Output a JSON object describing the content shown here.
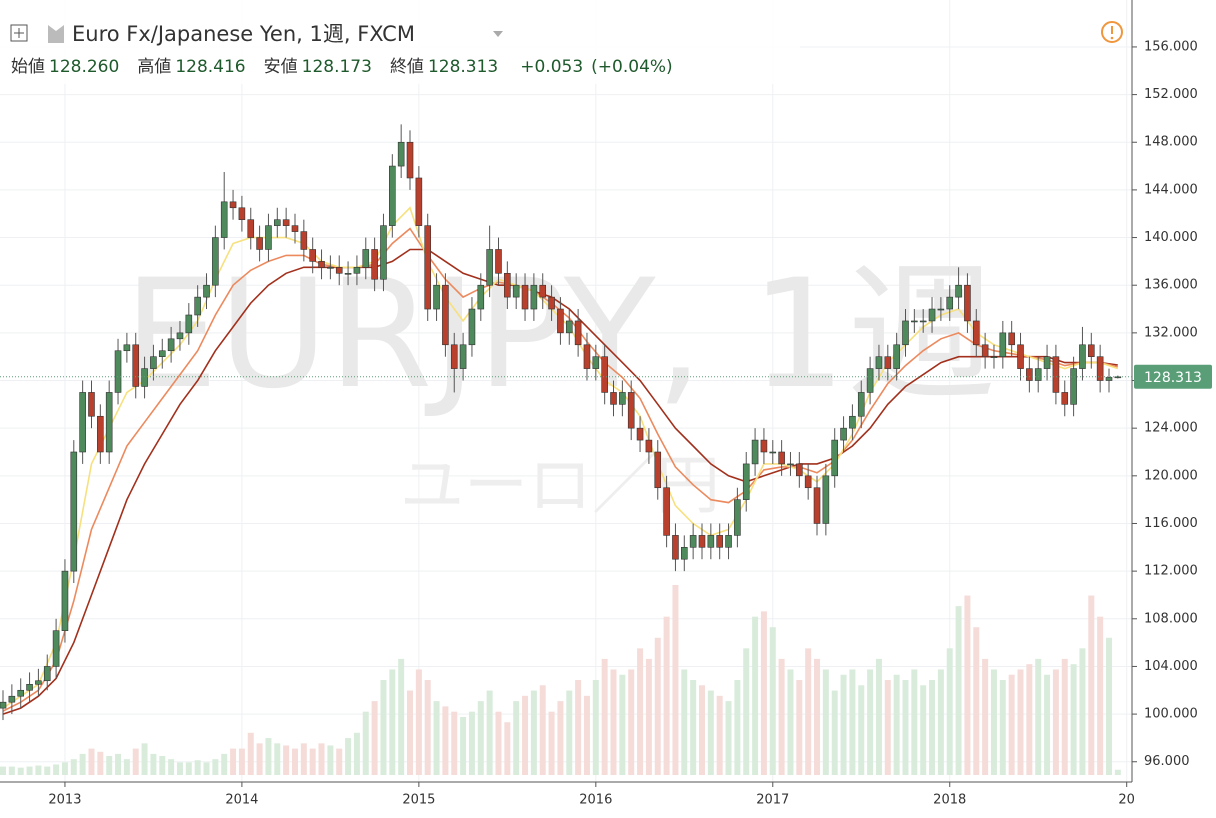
{
  "chart_data": {
    "type": "candlestick",
    "title": "Euro Fx/Japanese Yen, 1週, FXCM",
    "watermark": "EURJPY, 1週",
    "watermark_sub": "ユーロ／円",
    "x": [
      2012.65,
      2012.7,
      2012.75,
      2012.8,
      2012.85,
      2012.9,
      2012.95,
      2013,
      2013.05,
      2013.1,
      2013.15,
      2013.2,
      2013.25,
      2013.3,
      2013.35,
      2013.4,
      2013.45,
      2013.5,
      2013.55,
      2013.6,
      2013.65,
      2013.7,
      2013.75,
      2013.8,
      2013.85,
      2013.9,
      2013.95,
      2014,
      2014.05,
      2014.1,
      2014.15,
      2014.2,
      2014.25,
      2014.3,
      2014.35,
      2014.4,
      2014.45,
      2014.5,
      2014.55,
      2014.6,
      2014.65,
      2014.7,
      2014.75,
      2014.8,
      2014.85,
      2014.9,
      2014.95,
      2015,
      2015.05,
      2015.1,
      2015.15,
      2015.2,
      2015.25,
      2015.3,
      2015.35,
      2015.4,
      2015.45,
      2015.5,
      2015.55,
      2015.6,
      2015.65,
      2015.7,
      2015.75,
      2015.8,
      2015.85,
      2015.9,
      2015.95,
      2016,
      2016.05,
      2016.1,
      2016.15,
      2016.2,
      2016.25,
      2016.3,
      2016.35,
      2016.4,
      2016.45,
      2016.5,
      2016.55,
      2016.6,
      2016.65,
      2016.7,
      2016.75,
      2016.8,
      2016.85,
      2016.9,
      2016.95,
      2017,
      2017.05,
      2017.1,
      2017.15,
      2017.2,
      2017.25,
      2017.3,
      2017.35,
      2017.4,
      2017.45,
      2017.5,
      2017.55,
      2017.6,
      2017.65,
      2017.7,
      2017.75,
      2017.8,
      2017.85,
      2017.9,
      2017.95,
      2018,
      2018.05,
      2018.1,
      2018.15,
      2018.2,
      2018.25,
      2018.3,
      2018.35,
      2018.4,
      2018.45,
      2018.5,
      2018.55,
      2018.6,
      2018.65,
      2018.7,
      2018.75,
      2018.8,
      2018.85,
      2018.9,
      2018.95
    ],
    "open": [
      100.5,
      101,
      101.5,
      102,
      102.5,
      102.8,
      104,
      107,
      112,
      122,
      127,
      125,
      122,
      127,
      130.5,
      131,
      127.5,
      129,
      130,
      130.5,
      131.5,
      132,
      133.5,
      135,
      136,
      140,
      143,
      142.5,
      141.5,
      140,
      139,
      141,
      141.5,
      141,
      140.5,
      139,
      138,
      137.5,
      137.5,
      137,
      137,
      137.5,
      139,
      136.5,
      141,
      146,
      148,
      145,
      141,
      134,
      136,
      131,
      129,
      131,
      134,
      136,
      139,
      137,
      135,
      136,
      134,
      136,
      135,
      134,
      132,
      133,
      131,
      129,
      130,
      127,
      126,
      127,
      124,
      123,
      122,
      119,
      115,
      113,
      114,
      115,
      114,
      115,
      114,
      115,
      118,
      121,
      123,
      122,
      122,
      121,
      121,
      120,
      119,
      116,
      120,
      123,
      124,
      125,
      127,
      129,
      130,
      129,
      131,
      133,
      133,
      133,
      134,
      134,
      135,
      136,
      133,
      131,
      130,
      130,
      132,
      131,
      129,
      128,
      129,
      130,
      127,
      126,
      129,
      131,
      130,
      128,
      128.26
    ],
    "high": [
      102,
      102.5,
      103,
      103.5,
      103.8,
      105,
      108,
      113,
      123,
      128,
      128,
      126,
      128,
      131.5,
      132,
      132,
      130,
      131,
      131.5,
      132.5,
      133,
      134.5,
      136,
      137,
      141,
      145.5,
      144,
      143.5,
      142.5,
      141,
      142,
      142.5,
      142.5,
      142,
      141.5,
      140,
      139,
      138.5,
      138.5,
      138,
      138.5,
      140,
      140,
      142,
      147,
      149.5,
      149,
      146,
      142,
      137,
      137,
      132,
      132,
      135,
      137,
      141,
      140,
      138,
      137,
      137,
      137,
      137,
      136,
      135,
      134,
      134,
      132,
      131,
      131,
      128,
      128,
      128,
      125,
      124,
      123,
      120,
      116,
      115,
      116,
      116,
      116,
      116,
      116,
      119,
      122,
      124,
      124,
      123,
      123,
      122,
      122,
      121,
      120,
      121,
      124,
      125,
      126,
      128,
      130,
      131,
      131,
      132,
      134,
      134,
      134,
      135,
      135,
      136,
      137.5,
      137,
      134,
      132,
      131,
      133,
      133,
      132,
      130,
      130,
      131,
      131,
      128,
      130,
      132.5,
      132,
      131,
      129,
      128.416
    ],
    "low": [
      99.5,
      100,
      100.5,
      101,
      101.5,
      102,
      103,
      106,
      111,
      121,
      124,
      121,
      121,
      126,
      129.5,
      126.5,
      126.5,
      128,
      129,
      129.5,
      130.5,
      131,
      132.5,
      134,
      135,
      139,
      141.5,
      140.5,
      139,
      138,
      138,
      140,
      140,
      139.5,
      138,
      137,
      136.5,
      136.5,
      136,
      136,
      136,
      136.5,
      135.5,
      135.5,
      140,
      145,
      144,
      140,
      133,
      133,
      130,
      127,
      128,
      130,
      133,
      135,
      136,
      134,
      134,
      133,
      133,
      134,
      133,
      131,
      131,
      130,
      128,
      128,
      126,
      125,
      125,
      123,
      122,
      121,
      118,
      114,
      112,
      112,
      113,
      113,
      113,
      113,
      113,
      114,
      117,
      120,
      121,
      121,
      120,
      120,
      119,
      118,
      115,
      115,
      119,
      122,
      123,
      124,
      126,
      128,
      128,
      128,
      130,
      132,
      132,
      132,
      133,
      133,
      134,
      132,
      130,
      129,
      129,
      129,
      130,
      128,
      127,
      127,
      128,
      126,
      125,
      125,
      128,
      129,
      127,
      127,
      128.173
    ],
    "close": [
      101,
      101.5,
      102,
      102.5,
      102.8,
      104,
      107,
      112,
      122,
      127,
      125,
      122,
      127,
      130.5,
      131,
      127.5,
      129,
      130,
      130.5,
      131.5,
      132,
      133.5,
      135,
      136,
      140,
      143,
      142.5,
      141.5,
      140,
      139,
      141,
      141.5,
      141,
      140.5,
      139,
      138,
      137.5,
      137.5,
      137,
      137,
      137.5,
      139,
      136.5,
      141,
      146,
      148,
      145,
      141,
      134,
      136,
      131,
      129,
      131,
      134,
      136,
      139,
      137,
      135,
      136,
      134,
      136,
      135,
      134,
      132,
      133,
      131,
      129,
      130,
      127,
      126,
      127,
      124,
      123,
      122,
      119,
      115,
      113,
      114,
      115,
      114,
      115,
      114,
      115,
      118,
      121,
      123,
      122,
      122,
      121,
      121,
      120,
      119,
      116,
      120,
      123,
      124,
      125,
      127,
      129,
      130,
      129,
      131,
      133,
      133,
      133,
      134,
      134,
      135,
      136,
      133,
      131,
      130,
      130,
      132,
      131,
      129,
      128,
      129,
      130,
      127,
      126,
      129,
      131,
      130,
      128,
      128.26,
      128.313
    ],
    "volume": [
      8,
      8,
      7,
      8,
      9,
      8,
      10,
      12,
      15,
      20,
      25,
      22,
      18,
      20,
      15,
      25,
      30,
      20,
      18,
      15,
      12,
      12,
      14,
      12,
      15,
      20,
      25,
      25,
      40,
      30,
      35,
      30,
      28,
      25,
      30,
      25,
      30,
      28,
      25,
      35,
      40,
      60,
      70,
      90,
      100,
      110,
      80,
      100,
      90,
      70,
      65,
      60,
      55,
      60,
      70,
      80,
      60,
      50,
      70,
      75,
      80,
      85,
      60,
      70,
      80,
      90,
      75,
      90,
      110,
      100,
      95,
      100,
      120,
      110,
      130,
      150,
      180,
      100,
      90,
      85,
      80,
      75,
      70,
      90,
      120,
      150,
      155,
      140,
      110,
      100,
      90,
      120,
      110,
      100,
      80,
      95,
      100,
      85,
      100,
      110,
      90,
      95,
      90,
      100,
      85,
      90,
      100,
      120,
      160,
      170,
      140,
      110,
      100,
      90,
      95,
      100,
      105,
      110,
      95,
      100,
      110,
      105,
      120,
      170,
      150,
      130,
      5
    ],
    "up_color": "#4e8a5c",
    "down_color": "#b8402c",
    "volume_up_color": "#d9ecdc",
    "volume_down_color": "#f5dcd9",
    "ma_x": [
      2012.65,
      2012.75,
      2012.85,
      2012.95,
      2013.05,
      2013.15,
      2013.25,
      2013.35,
      2013.45,
      2013.55,
      2013.65,
      2013.75,
      2013.85,
      2013.95,
      2014.05,
      2014.15,
      2014.25,
      2014.35,
      2014.45,
      2014.55,
      2014.65,
      2014.75,
      2014.85,
      2014.95,
      2015.05,
      2015.15,
      2015.25,
      2015.35,
      2015.45,
      2015.55,
      2015.65,
      2015.75,
      2015.85,
      2015.95,
      2016.05,
      2016.15,
      2016.25,
      2016.35,
      2016.45,
      2016.55,
      2016.65,
      2016.75,
      2016.85,
      2016.95,
      2017.05,
      2017.15,
      2017.25,
      2017.35,
      2017.45,
      2017.55,
      2017.65,
      2017.75,
      2017.85,
      2017.95,
      2018.05,
      2018.15,
      2018.25,
      2018.35,
      2018.45,
      2018.55,
      2018.65,
      2018.75,
      2018.85,
      2018.95
    ],
    "ma": [
      {
        "color": "#a2301c",
        "values": [
          100,
          100.5,
          101.5,
          103,
          106,
          110,
          114,
          118,
          121,
          123.5,
          126,
          128,
          130.5,
          132.5,
          134.5,
          136,
          137,
          137.5,
          137.5,
          137.5,
          137.5,
          137.5,
          138,
          139,
          139,
          138,
          137,
          136.5,
          136,
          136,
          135.5,
          135,
          134,
          132.5,
          131,
          129.5,
          128,
          126,
          124,
          122.5,
          121,
          120,
          119.5,
          120,
          120.5,
          121,
          121,
          121.5,
          122.5,
          124,
          126,
          127.5,
          128.5,
          129.5,
          130,
          130,
          130,
          130,
          130,
          130,
          129.5,
          129.5,
          129.5,
          129.3
        ]
      },
      {
        "color": "#ec8a5e",
        "values": [
          100.25,
          101,
          102,
          104.5,
          109.5,
          115.5,
          119,
          122.5,
          124.5,
          126.5,
          128.5,
          130.5,
          133.5,
          136,
          137.25,
          138,
          138.5,
          138.5,
          137.75,
          137.5,
          137.5,
          137.75,
          139.5,
          140.75,
          138.5,
          136.5,
          135,
          135.75,
          136.25,
          136,
          135.5,
          134.5,
          133.25,
          131.25,
          129.5,
          128.25,
          126.5,
          123.5,
          120.75,
          119.25,
          118,
          117.75,
          118.75,
          120.5,
          120.75,
          120.75,
          120.25,
          121.25,
          123,
          125.5,
          127.75,
          129.25,
          130.5,
          131.5,
          132,
          131,
          130.5,
          130.25,
          130,
          129.75,
          129.25,
          129.5,
          129.5,
          129.15
        ]
      },
      {
        "color": "#f7e07e",
        "values": [
          100.5,
          101.5,
          102.5,
          106,
          113,
          121,
          124,
          127,
          128,
          129.5,
          131,
          133,
          136.5,
          139.5,
          140,
          140,
          140,
          139.5,
          138,
          137.5,
          137.5,
          138,
          141,
          142.5,
          138,
          135,
          133,
          135,
          136.5,
          136,
          135.5,
          134,
          132.5,
          130,
          128,
          127,
          125,
          121,
          117.5,
          116,
          115,
          115.5,
          118,
          121,
          121,
          120.5,
          119.5,
          121,
          123.5,
          127,
          129.5,
          131,
          132.5,
          133.5,
          134,
          132,
          131,
          130.5,
          130,
          129.5,
          129,
          129.5,
          129.5,
          129
        ]
      }
    ],
    "last_price_color": "#5a9e78",
    "xlim": [
      2012.633,
      2019.03
    ],
    "xticks": [
      2013,
      2014,
      2015,
      2016,
      2017,
      2018,
      {
        "value": 2019,
        "label": "20"
      }
    ],
    "ylim": [
      94.3,
      159.94
    ],
    "yticks": [
      {
        "value": 96,
        "label": "96.000"
      },
      {
        "value": 100,
        "label": "100.000"
      },
      {
        "value": 104,
        "label": "104.000"
      },
      {
        "value": 108,
        "label": "108.000"
      },
      {
        "value": 112,
        "label": "112.000"
      },
      {
        "value": 116,
        "label": "116.000"
      },
      {
        "value": 120,
        "label": "120.000"
      },
      {
        "value": 124,
        "label": "124.000"
      },
      {
        "value": 128,
        "label": "128.000"
      },
      {
        "value": 132,
        "label": "132.000"
      },
      {
        "value": 136,
        "label": "136.000"
      },
      {
        "value": 140,
        "label": "140.000"
      },
      {
        "value": 144,
        "label": "144.000"
      },
      {
        "value": 148,
        "label": "148.000"
      },
      {
        "value": 152,
        "label": "152.000"
      },
      {
        "value": 156,
        "label": "156.000"
      }
    ],
    "grid": true
  },
  "header": {
    "ohlc": [
      {
        "label": "始値",
        "value": "128.260"
      },
      {
        "label": "高値",
        "value": "128.416"
      },
      {
        "label": "安値",
        "value": "128.173"
      },
      {
        "label": "終値",
        "value": "128.313"
      }
    ],
    "change": "+0.053",
    "change_pct": "(+0.04%)"
  }
}
